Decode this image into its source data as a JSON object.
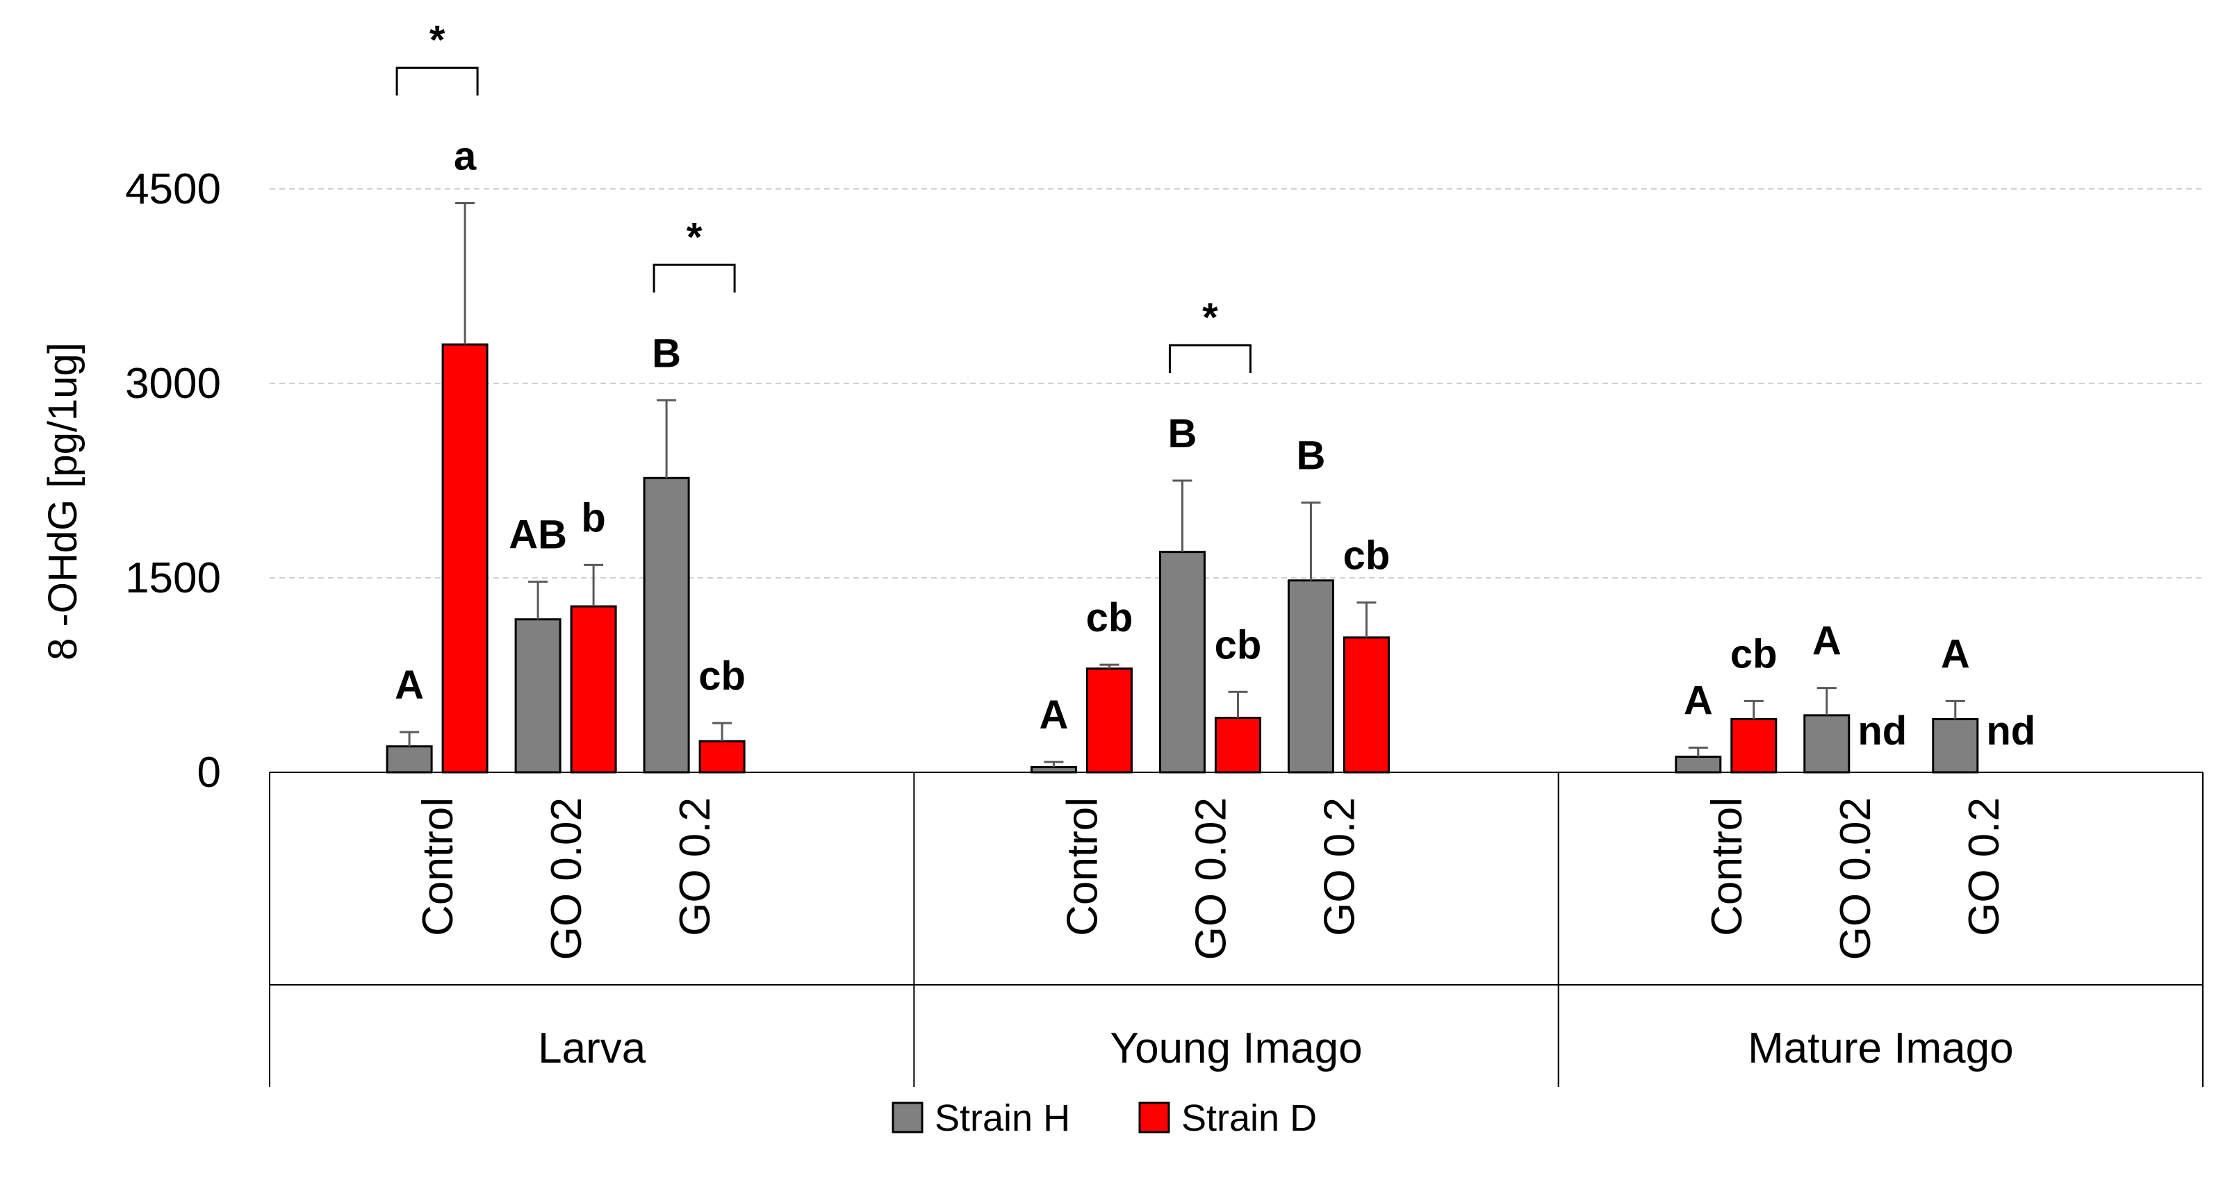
{
  "chart_data": {
    "type": "bar",
    "ylabel": "8 -OHdG   [pg/1ug]",
    "ylim": [
      0,
      4500
    ],
    "yticks": [
      0,
      1500,
      3000,
      4500
    ],
    "grid": true,
    "legend_position": "bottom",
    "colors": {
      "Strain H": "#808080",
      "Strain D": "#ff0000"
    },
    "groups": [
      {
        "name": "Larva",
        "categories": [
          "Control",
          "GO 0.02",
          "GO 0.2"
        ],
        "series": [
          {
            "name": "Strain H",
            "values": [
              200,
              1180,
              2270
            ],
            "errors": [
              110,
              290,
              600
            ],
            "letters": [
              "A",
              "AB",
              "B"
            ]
          },
          {
            "name": "Strain D",
            "values": [
              3300,
              1280,
              240
            ],
            "errors": [
              1090,
              320,
              140
            ],
            "letters": [
              "a",
              "b",
              "cb"
            ]
          }
        ],
        "significance": [
          {
            "from_category": 0,
            "to_category": 0,
            "label": "*"
          },
          {
            "from_category": 2,
            "to_category": 2,
            "label": "*"
          }
        ]
      },
      {
        "name": "Young Imago",
        "categories": [
          "Control",
          "GO 0.02",
          "GO 0.2"
        ],
        "series": [
          {
            "name": "Strain H",
            "values": [
              40,
              1700,
              1480
            ],
            "errors": [
              40,
              550,
              600
            ],
            "letters": [
              "A",
              "B",
              "B"
            ]
          },
          {
            "name": "Strain D",
            "values": [
              800,
              420,
              1040
            ],
            "errors": [
              30,
              200,
              270
            ],
            "letters": [
              "cb",
              "cb",
              "cb"
            ]
          }
        ],
        "significance": [
          {
            "from_category": 1,
            "to_category": 1,
            "label": "*"
          }
        ]
      },
      {
        "name": "Mature Imago",
        "categories": [
          "Control",
          "GO 0.02",
          "GO 0.2"
        ],
        "series": [
          {
            "name": "Strain H",
            "values": [
              120,
              440,
              410
            ],
            "errors": [
              70,
              210,
              140
            ],
            "letters": [
              "A",
              "A",
              "A"
            ]
          },
          {
            "name": "Strain D",
            "values": [
              410,
              null,
              null
            ],
            "errors": [
              140,
              null,
              null
            ],
            "letters": [
              "cb",
              "nd",
              "nd"
            ]
          }
        ],
        "significance": []
      }
    ]
  }
}
